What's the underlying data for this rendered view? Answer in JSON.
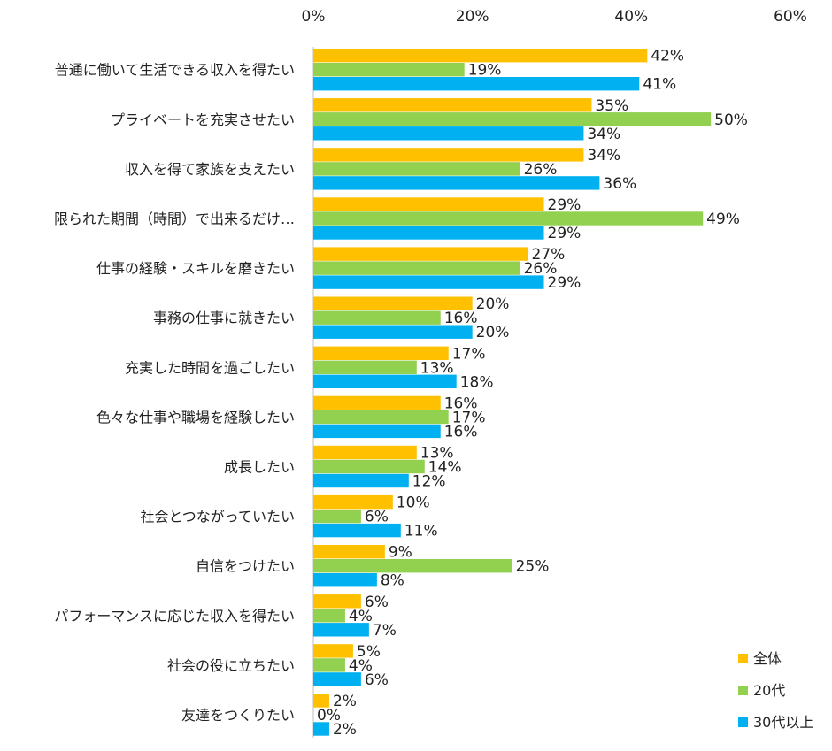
{
  "chart_data": {
    "type": "bar",
    "orientation": "horizontal",
    "title": "",
    "xlabel": "",
    "ylabel": "",
    "xlim": [
      0,
      60
    ],
    "ticks": [
      "0%",
      "20%",
      "40%",
      "60%"
    ],
    "tick_values": [
      0,
      20,
      40,
      60
    ],
    "grid": false,
    "legend_position": "bottom-right",
    "categories": [
      "普通に働いて生活できる収入を得たい",
      "プライベートを充実させたい",
      "収入を得て家族を支えたい",
      "限られた期間（時間）で出来るだけ…",
      "仕事の経験・スキルを磨きたい",
      "事務の仕事に就きたい",
      "充実した時間を過ごしたい",
      "色々な仕事や職場を経験したい",
      "成長したい",
      "社会とつながっていたい",
      "自信をつけたい",
      "パフォーマンスに応じた収入を得たい",
      "社会の役に立ちたい",
      "友達をつくりたい"
    ],
    "series": [
      {
        "name": "全体",
        "color": "#FFC000",
        "values": [
          42,
          35,
          34,
          29,
          27,
          20,
          17,
          16,
          13,
          10,
          9,
          6,
          5,
          2
        ]
      },
      {
        "name": "20代",
        "color": "#92D050",
        "values": [
          19,
          50,
          26,
          49,
          26,
          16,
          13,
          17,
          14,
          6,
          25,
          4,
          4,
          0
        ]
      },
      {
        "name": "30代以上",
        "color": "#00B0F0",
        "values": [
          41,
          34,
          36,
          29,
          29,
          20,
          18,
          16,
          12,
          11,
          8,
          7,
          6,
          2
        ]
      }
    ],
    "value_suffix": "%"
  }
}
